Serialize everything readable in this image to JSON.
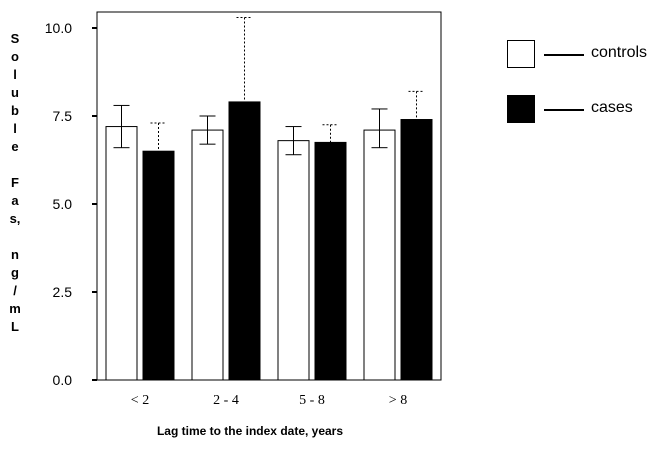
{
  "chart_data": {
    "type": "bar",
    "title": "",
    "xlabel": "Lag time to the index date, years",
    "ylabel": "Soluble Fas, ng/mL",
    "ylabel_chars": [
      "S",
      "o",
      "l",
      "u",
      "b",
      "l",
      "e",
      "",
      "F",
      "a",
      "s,",
      "",
      "n",
      "g",
      "/",
      "m",
      "L"
    ],
    "categories": [
      "< 2",
      "2 - 4",
      "5 - 8",
      "> 8"
    ],
    "ylim": [
      0,
      10.0
    ],
    "yticks": [
      "0.0",
      "2.5",
      "5.0",
      "7.5",
      "10.0"
    ],
    "grid": false,
    "legend_position": "right",
    "series": [
      {
        "name": "controls",
        "color": "#ffffff",
        "values": [
          7.2,
          7.1,
          6.8,
          7.1
        ],
        "error_low": [
          6.6,
          6.7,
          6.4,
          6.6
        ],
        "error_high": [
          7.8,
          7.5,
          7.2,
          7.7
        ],
        "error_style": "solid"
      },
      {
        "name": "cases",
        "color": "#000000",
        "values": [
          6.5,
          7.9,
          6.75,
          7.4
        ],
        "error_low": [
          6.5,
          7.9,
          6.75,
          7.4
        ],
        "error_high": [
          7.3,
          10.3,
          7.25,
          8.2
        ],
        "error_style": "dotted"
      }
    ]
  }
}
